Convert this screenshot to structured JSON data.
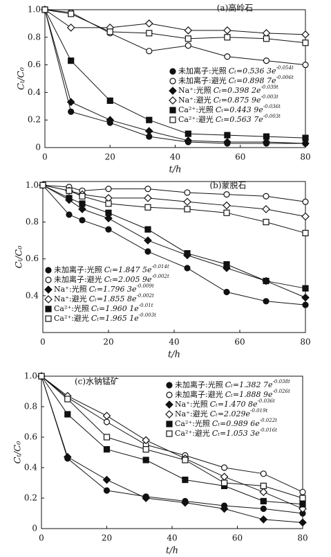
{
  "chart_data": [
    {
      "type": "line",
      "title": "(a)高岭石",
      "xlabel": "t/h",
      "ylabel": "Cₜ/C₀",
      "x": [
        0,
        8,
        20,
        32,
        44,
        56,
        68,
        80
      ],
      "xlim": [
        0,
        80
      ],
      "xticks": [
        0,
        20,
        40,
        60,
        80
      ],
      "ylim": [
        0,
        1
      ],
      "yticks": [
        0,
        0.2,
        0.4,
        0.6,
        0.8,
        {
          "value": 1,
          "label": "1.0"
        }
      ],
      "series": [
        {
          "name": "未加离子:光照",
          "fit": "Cₜ=0.536 3e",
          "fit_exp": "-0.054t",
          "marker": "circle-filled",
          "color": "#111111",
          "values": [
            1.0,
            0.26,
            0.18,
            0.08,
            0.04,
            0.03,
            0.03,
            0.03
          ]
        },
        {
          "name": "未加离子:避光",
          "fit": "Cₜ=0.898 7e",
          "fit_exp": "-0.006t",
          "marker": "circle-open",
          "color": "#111111",
          "values": [
            1.0,
            0.98,
            0.83,
            0.7,
            0.74,
            0.66,
            0.63,
            0.6
          ]
        },
        {
          "name": "Na⁺:光照",
          "fit": "Cₜ=0.398 2e",
          "fit_exp": "-0.039t",
          "marker": "diamond-filled",
          "color": "#111111",
          "values": [
            1.0,
            0.33,
            0.2,
            0.12,
            0.05,
            0.04,
            0.04,
            0.03
          ]
        },
        {
          "name": "Na⁺:避光",
          "fit": "Cₜ=0.875 9e",
          "fit_exp": "-0.003t",
          "marker": "diamond-open",
          "color": "#111111",
          "values": [
            1.0,
            0.87,
            0.87,
            0.9,
            0.85,
            0.85,
            0.83,
            0.82
          ]
        },
        {
          "name": "Ca²⁺:光照",
          "fit": "Cₜ=0.443 9e",
          "fit_exp": "-0.036t",
          "marker": "square-filled",
          "color": "#111111",
          "values": [
            1.0,
            0.63,
            0.34,
            0.2,
            0.1,
            0.09,
            0.08,
            0.07
          ]
        },
        {
          "name": "Ca²⁺:避光",
          "fit": "Cₜ=0.563 7e",
          "fit_exp": "-0.003t",
          "marker": "square-open",
          "color": "#111111",
          "values": [
            1.0,
            0.97,
            0.84,
            0.83,
            0.79,
            0.8,
            0.79,
            0.76
          ]
        }
      ]
    },
    {
      "type": "line",
      "title": "(b)蒙脱石",
      "xlabel": "t/h",
      "ylabel": "Cₜ/C₀",
      "x": [
        0,
        8,
        12,
        20,
        32,
        44,
        56,
        68,
        80
      ],
      "xlim": [
        0,
        80
      ],
      "xticks": [
        0,
        20,
        40,
        60,
        80
      ],
      "ylim": [
        0.2,
        1.02
      ],
      "yticks": [
        0.4,
        0.6,
        0.8,
        {
          "value": 1,
          "label": "1.0"
        }
      ],
      "series": [
        {
          "name": "未加离子:光照",
          "fit": "Cₜ=1.847 5e",
          "fit_exp": "-0.014t",
          "marker": "circle-filled",
          "color": "#111111",
          "values": [
            1.0,
            0.84,
            0.81,
            0.76,
            0.64,
            0.55,
            0.42,
            0.37,
            0.35
          ]
        },
        {
          "name": "未加离子:避光",
          "fit": "Cₜ=2.005 9e",
          "fit_exp": "-0.002t",
          "marker": "circle-open",
          "color": "#111111",
          "values": [
            1.0,
            0.99,
            0.97,
            0.98,
            0.98,
            0.96,
            0.95,
            0.94,
            0.91
          ]
        },
        {
          "name": "Na⁺:光照",
          "fit": "Cₜ=1.796 3e",
          "fit_exp": "-0.009t",
          "marker": "diamond-filled",
          "color": "#111111",
          "values": [
            1.0,
            0.92,
            0.87,
            0.82,
            0.7,
            0.62,
            0.55,
            0.48,
            0.39
          ]
        },
        {
          "name": "Na⁺:避光",
          "fit": "Cₜ=1.855 8e",
          "fit_exp": "-0.002t",
          "marker": "diamond-open",
          "color": "#111111",
          "values": [
            1.0,
            0.97,
            0.95,
            0.93,
            0.93,
            0.91,
            0.89,
            0.87,
            0.83
          ]
        },
        {
          "name": "Ca²⁺:光照",
          "fit": "Cₜ=1.960 1e",
          "fit_exp": "-0.01t",
          "marker": "square-filled",
          "color": "#111111",
          "values": [
            1.0,
            0.93,
            0.9,
            0.85,
            0.76,
            0.63,
            0.57,
            0.48,
            0.44
          ]
        },
        {
          "name": "Ca²⁺:避光",
          "fit": "Cₜ=1.965 1e",
          "fit_exp": "-0.003t",
          "marker": "square-open",
          "color": "#111111",
          "values": [
            1.0,
            0.97,
            0.94,
            0.9,
            0.88,
            0.87,
            0.85,
            0.8,
            0.74
          ]
        }
      ]
    },
    {
      "type": "line",
      "title": "(c)水钠锰矿",
      "xlabel": "t/h",
      "ylabel": "Cₜ/C₀",
      "x": [
        0,
        8,
        20,
        32,
        44,
        56,
        68,
        80
      ],
      "xlim": [
        0,
        80
      ],
      "xticks": [
        0,
        20,
        40,
        60,
        80
      ],
      "ylim": [
        0,
        1
      ],
      "yticks": [
        0,
        0.2,
        0.4,
        0.6,
        0.8,
        {
          "value": 1,
          "label": "1.0"
        }
      ],
      "series": [
        {
          "name": "未加离子:光照",
          "fit": "Cₜ=1.382 7e",
          "fit_exp": "-0.038t",
          "marker": "circle-filled",
          "color": "#111111",
          "values": [
            1.0,
            0.46,
            0.25,
            0.21,
            0.18,
            0.15,
            0.13,
            0.1
          ]
        },
        {
          "name": "未加离子:避光",
          "fit": "Cₜ=1.888 9e",
          "fit_exp": "-0.026t",
          "marker": "circle-open",
          "color": "#111111",
          "values": [
            1.0,
            0.86,
            0.7,
            0.55,
            0.48,
            0.4,
            0.36,
            0.24
          ]
        },
        {
          "name": "Na⁺:光照",
          "fit": "Cₜ=1.470 8e",
          "fit_exp": "-0.036t",
          "marker": "diamond-filled",
          "color": "#111111",
          "values": [
            1.0,
            0.47,
            0.32,
            0.2,
            0.17,
            0.13,
            0.06,
            0.04
          ]
        },
        {
          "name": "Na⁺:避光",
          "fit": "Cₜ=2.029e",
          "fit_exp": "-0.019t",
          "marker": "diamond-open",
          "color": "#111111",
          "values": [
            1.0,
            0.87,
            0.74,
            0.58,
            0.46,
            0.34,
            0.24,
            0.13
          ]
        },
        {
          "name": "Ca²⁺:光照",
          "fit": "Cₜ=0.989 6e",
          "fit_exp": "-0.022t",
          "marker": "square-filled",
          "color": "#111111",
          "values": [
            1.0,
            0.75,
            0.52,
            0.45,
            0.32,
            0.28,
            0.18,
            0.16
          ]
        },
        {
          "name": "Ca²⁺:避光",
          "fit": "Cₜ=1.053 3e",
          "fit_exp": "-0.016t",
          "marker": "square-open",
          "color": "#111111",
          "values": [
            1.0,
            0.85,
            0.6,
            0.52,
            0.45,
            0.3,
            0.28,
            0.2
          ]
        }
      ]
    }
  ]
}
